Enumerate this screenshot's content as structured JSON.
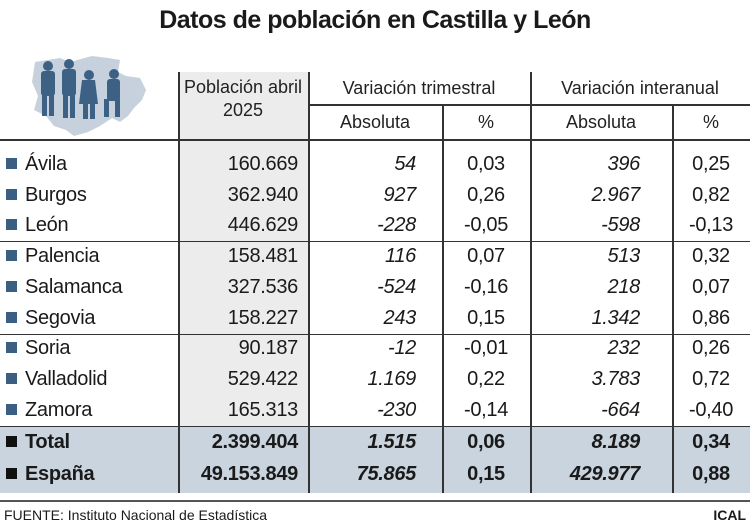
{
  "title": "Datos de población en Castilla y León",
  "headers": {
    "population": "Población abril 2025",
    "quarterly": "Variación trimestral",
    "yearly": "Variación interanual",
    "absolute": "Absoluta",
    "percent": "%"
  },
  "rows": [
    {
      "name": "Ávila",
      "pop": "160.669",
      "q_abs": "54",
      "q_pct": "0,03",
      "y_abs": "396",
      "y_pct": "0,25"
    },
    {
      "name": "Burgos",
      "pop": "362.940",
      "q_abs": "927",
      "q_pct": "0,26",
      "y_abs": "2.967",
      "y_pct": "0,82"
    },
    {
      "name": "León",
      "pop": "446.629",
      "q_abs": "-228",
      "q_pct": "-0,05",
      "y_abs": "-598",
      "y_pct": "-0,13"
    },
    {
      "name": "Palencia",
      "pop": "158.481",
      "q_abs": "116",
      "q_pct": "0,07",
      "y_abs": "513",
      "y_pct": "0,32"
    },
    {
      "name": "Salamanca",
      "pop": "327.536",
      "q_abs": "-524",
      "q_pct": "-0,16",
      "y_abs": "218",
      "y_pct": "0,07"
    },
    {
      "name": "Segovia",
      "pop": "158.227",
      "q_abs": "243",
      "q_pct": "0,15",
      "y_abs": "1.342",
      "y_pct": "0,86"
    },
    {
      "name": "Soria",
      "pop": "90.187",
      "q_abs": "-12",
      "q_pct": "-0,01",
      "y_abs": "232",
      "y_pct": "0,26"
    },
    {
      "name": "Valladolid",
      "pop": "529.422",
      "q_abs": "1.169",
      "q_pct": "0,22",
      "y_abs": "3.783",
      "y_pct": "0,72"
    },
    {
      "name": "Zamora",
      "pop": "165.313",
      "q_abs": "-230",
      "q_pct": "-0,14",
      "y_abs": "-664",
      "y_pct": "-0,40"
    }
  ],
  "totals": [
    {
      "name": "Total",
      "pop": "2.399.404",
      "q_abs": "1.515",
      "q_pct": "0,06",
      "y_abs": "8.189",
      "y_pct": "0,34"
    },
    {
      "name": "España",
      "pop": "49.153.849",
      "q_abs": "75.865",
      "q_pct": "0,15",
      "y_abs": "429.977",
      "y_pct": "0,88"
    }
  ],
  "footer": {
    "source": "FUENTE: Instituto Nacional de Estadística",
    "credit": "ICAL"
  },
  "colors": {
    "bullet": "#3b5f82",
    "total_bg": "#c9d4df",
    "population_col_bg": "#ececec",
    "map": "#c6d1dd"
  }
}
